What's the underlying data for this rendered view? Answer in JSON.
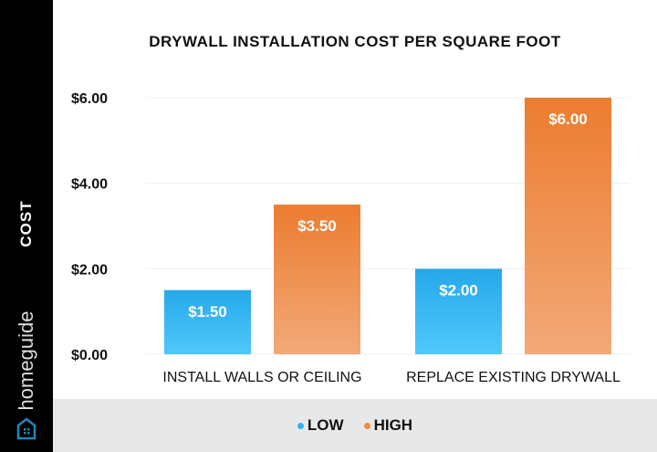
{
  "brand": "homeguide",
  "chart_data": {
    "type": "bar",
    "title": "DRYWALL INSTALLATION COST PER SQUARE FOOT",
    "ylabel": "COST",
    "xlabel": "",
    "categories": [
      "INSTALL WALLS OR CEILING",
      "REPLACE EXISTING DRYWALL"
    ],
    "series": [
      {
        "name": "LOW",
        "color": "#2eb4ee",
        "values": [
          1.5,
          2.0
        ],
        "labels": [
          "$1.50",
          "$2.00"
        ]
      },
      {
        "name": "HIGH",
        "color": "#ee8a3e",
        "values": [
          3.5,
          6.0
        ],
        "labels": [
          "$3.50",
          "$6.00"
        ]
      }
    ],
    "ylim": [
      0,
      6
    ],
    "yticks": [
      0,
      2,
      4,
      6
    ],
    "ytick_labels": [
      "$0.00",
      "$2.00",
      "$4.00",
      "$6.00"
    ],
    "grid": true,
    "legend": "bottom"
  }
}
